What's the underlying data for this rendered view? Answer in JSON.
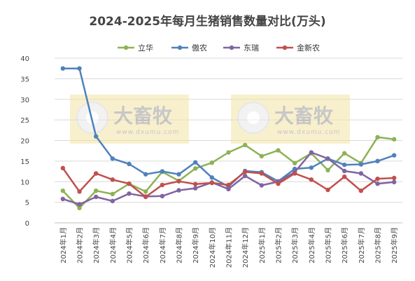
{
  "chart_data": {
    "type": "line",
    "title": "2024-2025年每月生猪销售数量对比(万头)",
    "xlabel": "",
    "ylabel": "",
    "ylim": [
      0,
      40
    ],
    "yticks": [
      0,
      5,
      10,
      15,
      20,
      25,
      30,
      35,
      40
    ],
    "grid": true,
    "legend_position": "top",
    "categories": [
      "2024年1月",
      "2024年2月",
      "2024年3月",
      "2024年4月",
      "2024年5月",
      "2024年6月",
      "2024年7月",
      "2024年8月",
      "2024年9月",
      "2024年10月",
      "2024年11月",
      "2024年12月",
      "2025年1月",
      "2025年2月",
      "2025年3月",
      "2025年4月",
      "2025年5月",
      "2025年6月",
      "2025年7月",
      "2025年8月",
      "2025年9月"
    ],
    "series": [
      {
        "name": "立华",
        "color": "#8DB255",
        "values": [
          7.8,
          3.6,
          7.8,
          7.0,
          9.5,
          7.6,
          12.4,
          10.2,
          13.2,
          14.6,
          17.1,
          18.9,
          16.2,
          17.6,
          14.5,
          16.9,
          12.8,
          16.9,
          14.5,
          20.8,
          20.3
        ]
      },
      {
        "name": "傲农",
        "color": "#4F81BD",
        "values": [
          37.5,
          37.5,
          21.0,
          15.6,
          14.3,
          11.8,
          12.5,
          11.8,
          14.7,
          11.0,
          8.8,
          12.6,
          12.3,
          10.1,
          13.1,
          13.4,
          15.6,
          14.1,
          14.2,
          15.0,
          16.4
        ]
      },
      {
        "name": "东瑞",
        "color": "#8064A2",
        "values": [
          5.8,
          4.5,
          6.3,
          5.3,
          7.1,
          6.4,
          6.5,
          7.9,
          8.4,
          9.8,
          8.2,
          11.4,
          9.1,
          10.0,
          12.3,
          17.1,
          15.6,
          12.6,
          12.0,
          9.5,
          9.9
        ]
      },
      {
        "name": "金新农",
        "color": "#C0504D",
        "values": [
          13.3,
          7.6,
          12.0,
          10.5,
          9.5,
          6.3,
          9.2,
          10.1,
          9.4,
          9.7,
          9.2,
          12.4,
          12.0,
          9.5,
          12.0,
          10.5,
          8.0,
          11.2,
          7.8,
          10.7,
          10.9
        ]
      }
    ],
    "watermark": {
      "name": "大畜牧",
      "url": "www.dxumu.com"
    }
  }
}
